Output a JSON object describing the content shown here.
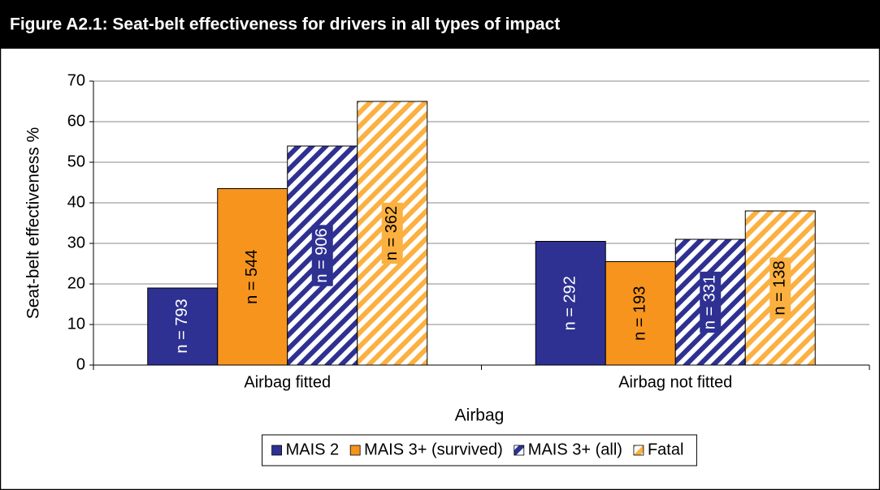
{
  "chart_data": {
    "type": "bar",
    "title": "Figure A2.1:  Seat-belt effectiveness for drivers in all types of impact",
    "x_label": "Airbag",
    "y_label": "Seat-belt effectiveness %",
    "categories": [
      "Airbag fitted",
      "Airbag not fitted"
    ],
    "series": [
      {
        "name": "MAIS 2",
        "color": "#2e3192",
        "hatched": false,
        "values": [
          19,
          30.5
        ],
        "labels": [
          "n = 793",
          "n = 292"
        ]
      },
      {
        "name": "MAIS 3+ (survived)",
        "color": "#f7941d",
        "hatched": false,
        "values": [
          43.5,
          25.5
        ],
        "labels": [
          "n = 544",
          "n = 193"
        ]
      },
      {
        "name": "MAIS 3+ (all)",
        "color": "#2e3192",
        "hatched": true,
        "values": [
          54,
          31
        ],
        "labels": [
          "n = 906",
          "n = 331"
        ]
      },
      {
        "name": "Fatal",
        "color": "#fbb040",
        "hatched": true,
        "values": [
          65,
          38
        ],
        "labels": [
          "n = 362",
          "n = 138"
        ]
      }
    ],
    "ylim": [
      0,
      70
    ],
    "yticks": [
      0,
      10,
      20,
      30,
      40,
      50,
      60,
      70
    ],
    "grid": true,
    "legend": "bottom"
  }
}
